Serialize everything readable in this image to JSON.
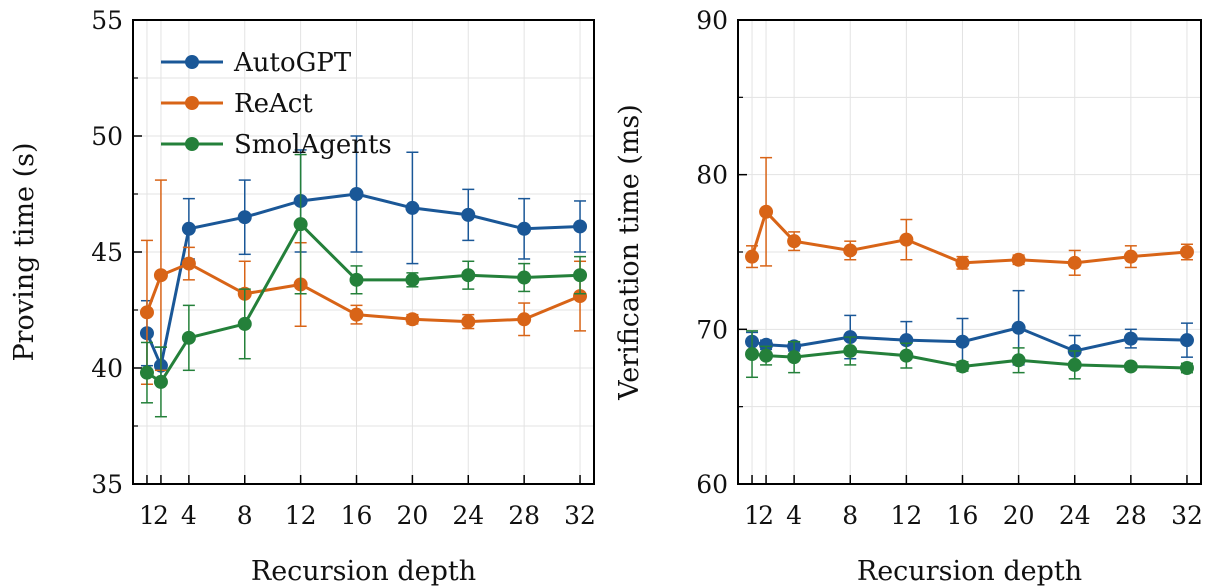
{
  "chart_data": [
    {
      "type": "line",
      "xlabel": "Recursion depth",
      "ylabel": "Proving time (s)",
      "x": [
        1,
        2,
        4,
        8,
        12,
        16,
        20,
        24,
        28,
        32
      ],
      "xticks": [
        1,
        2,
        4,
        8,
        12,
        16,
        20,
        24,
        28,
        32
      ],
      "xtick_labels": [
        "1",
        "2",
        "4",
        "8",
        "12",
        "16",
        "20",
        "24",
        "28",
        "32"
      ],
      "xlim": [
        0,
        33
      ],
      "ylim": [
        35,
        55
      ],
      "yticks": [
        35,
        40,
        45,
        50,
        55
      ],
      "ytick_labels": [
        "35",
        "40",
        "45",
        "50",
        "55"
      ],
      "grid": true,
      "legend": "top-left",
      "series": [
        {
          "name": "AutoGPT",
          "color": "#1a5797",
          "values": [
            41.5,
            40.1,
            46.0,
            46.5,
            47.2,
            47.5,
            46.9,
            46.6,
            46.0,
            46.1
          ],
          "error": [
            1.4,
            0.8,
            1.3,
            1.6,
            2.2,
            2.5,
            2.4,
            1.1,
            1.3,
            1.1
          ]
        },
        {
          "name": "ReAct",
          "color": "#d86417",
          "values": [
            42.4,
            44.0,
            44.5,
            43.2,
            43.6,
            42.3,
            42.1,
            42.0,
            42.1,
            43.1
          ],
          "error": [
            3.1,
            4.1,
            0.7,
            1.4,
            1.8,
            0.4,
            0.2,
            0.3,
            0.7,
            1.5
          ]
        },
        {
          "name": "SmolAgents",
          "color": "#24803a",
          "values": [
            39.8,
            39.4,
            41.3,
            41.9,
            46.2,
            43.8,
            43.8,
            44.0,
            43.9,
            44.0
          ],
          "error": [
            1.3,
            1.5,
            1.4,
            1.5,
            3.0,
            0.6,
            0.3,
            0.6,
            0.6,
            0.8
          ]
        }
      ]
    },
    {
      "type": "line",
      "xlabel": "Recursion depth",
      "ylabel": "Verification time (ms)",
      "x": [
        1,
        2,
        4,
        8,
        12,
        16,
        20,
        24,
        28,
        32
      ],
      "xticks": [
        1,
        2,
        4,
        8,
        12,
        16,
        20,
        24,
        28,
        32
      ],
      "xtick_labels": [
        "1",
        "2",
        "4",
        "8",
        "12",
        "16",
        "20",
        "24",
        "28",
        "32"
      ],
      "xlim": [
        0,
        33
      ],
      "ylim": [
        60,
        90
      ],
      "yticks": [
        60,
        70,
        80,
        90
      ],
      "ytick_labels": [
        "60",
        "70",
        "80",
        "90"
      ],
      "grid": true,
      "legend": "none",
      "series": [
        {
          "name": "AutoGPT",
          "color": "#1a5797",
          "values": [
            69.2,
            69.0,
            68.9,
            69.5,
            69.3,
            69.2,
            70.1,
            68.6,
            69.4,
            69.3
          ],
          "error": [
            0.6,
            0.3,
            0.3,
            1.4,
            1.2,
            1.5,
            2.4,
            1.0,
            0.6,
            1.1
          ]
        },
        {
          "name": "ReAct",
          "color": "#d86417",
          "values": [
            74.7,
            77.6,
            75.7,
            75.1,
            75.8,
            74.3,
            74.5,
            74.3,
            74.7,
            75.0
          ],
          "error": [
            0.7,
            3.5,
            0.6,
            0.6,
            1.3,
            0.4,
            0.3,
            0.8,
            0.7,
            0.5
          ]
        },
        {
          "name": "SmolAgents",
          "color": "#24803a",
          "values": [
            68.4,
            68.3,
            68.2,
            68.6,
            68.3,
            67.6,
            68.0,
            67.7,
            67.6,
            67.5
          ],
          "error": [
            1.5,
            0.6,
            1.0,
            0.9,
            0.8,
            0.3,
            0.8,
            0.9,
            0.2,
            0.3
          ]
        }
      ]
    }
  ]
}
